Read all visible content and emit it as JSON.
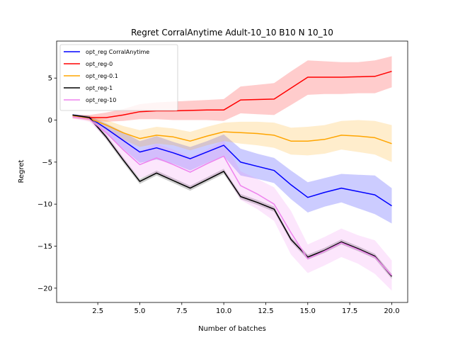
{
  "chart_data": {
    "type": "line",
    "title": "Regret CorralAnytime Adult-10_10 B10 N 10_10",
    "xlabel": "Number of batches",
    "ylabel": "Regret",
    "xlim": [
      0.05,
      20.95
    ],
    "ylim": [
      -21.7,
      9.4
    ],
    "xticks": [
      2.5,
      5.0,
      7.5,
      10.0,
      12.5,
      15.0,
      17.5,
      20.0
    ],
    "xtick_labels": [
      "2.5",
      "5.0",
      "7.5",
      "10.0",
      "12.5",
      "15.0",
      "17.5",
      "20.0"
    ],
    "yticks": [
      5,
      0,
      -5,
      -10,
      -15,
      -20
    ],
    "ytick_labels": [
      "5",
      "0",
      "−5",
      "−10",
      "−15",
      "−20"
    ],
    "grid": false,
    "legend_position": "top-left",
    "x": [
      1,
      2,
      3,
      4,
      5,
      6,
      7,
      8,
      9,
      10,
      11,
      12,
      13,
      14,
      15,
      16,
      17,
      18,
      19,
      20
    ],
    "series": [
      {
        "name": "opt_reg CorralAnytime",
        "color": "#0000ff",
        "values": [
          0.6,
          0.3,
          -1.0,
          -2.4,
          -3.8,
          -3.3,
          -3.9,
          -4.6,
          -3.8,
          -3.0,
          -5.0,
          -5.5,
          -6.0,
          -7.7,
          -9.2,
          -8.6,
          -8.1,
          -8.5,
          -8.9,
          -10.2
        ],
        "lower": [
          0.5,
          0.1,
          -1.6,
          -3.4,
          -5.1,
          -4.7,
          -5.2,
          -6.0,
          -5.1,
          -4.3,
          -6.6,
          -7.0,
          -7.5,
          -9.4,
          -11.0,
          -10.3,
          -9.8,
          -10.5,
          -11.2,
          -12.3
        ],
        "upper": [
          0.7,
          0.5,
          -0.4,
          -1.4,
          -2.5,
          -1.9,
          -2.6,
          -3.2,
          -2.5,
          -1.7,
          -3.4,
          -4.0,
          -4.5,
          -6.0,
          -7.4,
          -6.9,
          -6.4,
          -6.5,
          -6.6,
          -8.1
        ]
      },
      {
        "name": "opt_reg-0",
        "color": "#ff0000",
        "values": [
          0.4,
          0.3,
          0.3,
          0.6,
          1.0,
          1.1,
          1.1,
          1.15,
          1.2,
          1.2,
          2.4,
          2.45,
          2.5,
          3.8,
          5.1,
          5.1,
          5.1,
          5.15,
          5.2,
          5.8
        ],
        "lower": [
          0.2,
          0.0,
          -0.2,
          -0.1,
          0.1,
          0.1,
          0.0,
          0.0,
          0.0,
          -0.1,
          0.8,
          0.7,
          0.6,
          1.8,
          3.0,
          3.1,
          3.1,
          3.2,
          3.2,
          3.9
        ],
        "upper": [
          0.6,
          0.6,
          0.9,
          1.3,
          1.9,
          2.1,
          2.2,
          2.3,
          2.4,
          2.5,
          4.0,
          4.2,
          4.4,
          5.8,
          7.1,
          7.0,
          6.9,
          6.9,
          7.1,
          7.6
        ]
      },
      {
        "name": "opt_reg-0.1",
        "color": "#ffa500",
        "values": [
          0.5,
          0.2,
          -0.6,
          -1.5,
          -2.2,
          -1.8,
          -2.0,
          -2.5,
          -1.9,
          -1.4,
          -1.5,
          -1.6,
          -1.8,
          -2.5,
          -2.5,
          -2.3,
          -1.8,
          -1.9,
          -2.1,
          -2.8
        ],
        "lower": [
          0.4,
          -0.1,
          -1.2,
          -2.3,
          -3.2,
          -2.8,
          -3.0,
          -3.6,
          -3.0,
          -2.5,
          -2.8,
          -3.0,
          -3.3,
          -4.1,
          -4.2,
          -4.0,
          -3.5,
          -3.8,
          -4.1,
          -5.0
        ],
        "upper": [
          0.6,
          0.5,
          0.0,
          -0.7,
          -1.2,
          -0.8,
          -1.0,
          -1.4,
          -0.8,
          -0.3,
          -0.2,
          -0.2,
          -0.3,
          -0.9,
          -0.8,
          -0.6,
          -0.1,
          0.0,
          -0.1,
          -0.6
        ]
      },
      {
        "name": "opt_reg-1",
        "color": "#000000",
        "values": [
          0.6,
          0.3,
          -2.0,
          -4.7,
          -7.3,
          -6.3,
          -7.2,
          -8.1,
          -7.1,
          -6.1,
          -9.1,
          -9.8,
          -10.6,
          -14.2,
          -16.3,
          -15.5,
          -14.5,
          -15.3,
          -16.2,
          -18.6
        ],
        "lower": [
          0.5,
          0.1,
          -2.3,
          -5.0,
          -7.6,
          -6.6,
          -7.5,
          -8.4,
          -7.4,
          -6.4,
          -9.4,
          -10.1,
          -10.9,
          -14.5,
          -16.6,
          -15.8,
          -14.8,
          -15.6,
          -16.5,
          -18.9
        ],
        "upper": [
          0.7,
          0.5,
          -1.7,
          -4.4,
          -7.0,
          -6.0,
          -6.9,
          -7.8,
          -6.8,
          -5.8,
          -8.8,
          -9.5,
          -10.3,
          -13.9,
          -16.0,
          -15.2,
          -14.2,
          -15.0,
          -15.9,
          -18.3
        ]
      },
      {
        "name": "opt_reg-10",
        "color": "#ee82ee",
        "values": [
          0.4,
          0.1,
          -1.5,
          -3.5,
          -5.3,
          -4.5,
          -5.3,
          -6.2,
          -5.2,
          -4.3,
          -7.8,
          -8.8,
          -10.0,
          -13.4,
          -16.5,
          -15.6,
          -14.6,
          -15.4,
          -16.3,
          -18.5
        ],
        "lower": [
          0.2,
          -0.2,
          -2.2,
          -4.8,
          -6.9,
          -6.3,
          -7.1,
          -8.0,
          -7.0,
          -6.2,
          -9.5,
          -10.6,
          -12.0,
          -16.0,
          -18.2,
          -17.3,
          -16.3,
          -17.1,
          -18.3,
          -20.3
        ],
        "upper": [
          0.6,
          0.4,
          -0.8,
          -2.2,
          -3.7,
          -2.8,
          -3.5,
          -4.4,
          -3.5,
          -2.4,
          -6.1,
          -7.0,
          -8.0,
          -10.8,
          -14.8,
          -13.9,
          -12.9,
          -13.7,
          -14.3,
          -16.7
        ]
      }
    ]
  }
}
